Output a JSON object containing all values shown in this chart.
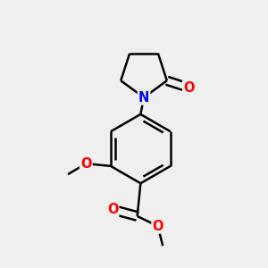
{
  "bg_color": "#efefef",
  "bond_color": "#000000",
  "bond_width": 1.8,
  "atom_colors": {
    "O": "#ff0000",
    "N": "#0000ff"
  },
  "font_size": 10.5,
  "fig_size": [
    3.0,
    3.0
  ],
  "dpi": 100,
  "xlim": [
    -1.2,
    1.4
  ],
  "ylim": [
    -1.6,
    1.6
  ]
}
